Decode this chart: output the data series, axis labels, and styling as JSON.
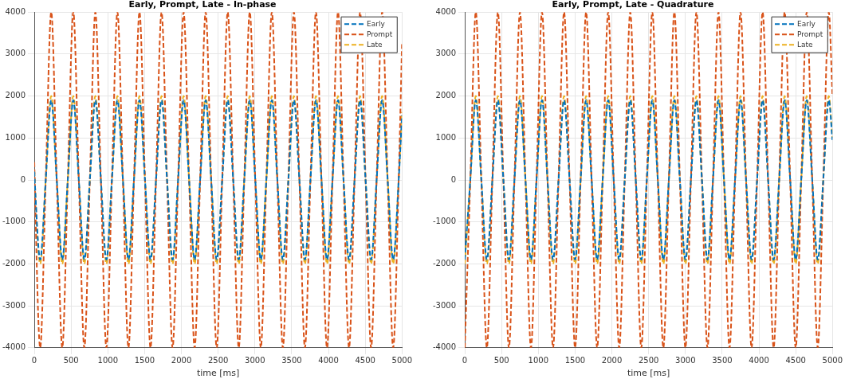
{
  "chart_data": [
    {
      "type": "line",
      "title": "Early, Prompt, Late - In-phase",
      "xlabel": "time [ms]",
      "x": [
        0,
        5,
        80,
        155,
        230,
        305,
        380,
        455,
        530,
        605,
        680,
        755,
        830,
        905,
        980,
        1055,
        1130,
        1205,
        1280,
        1355,
        1430,
        1505,
        1580,
        1655,
        1730,
        1805,
        1880,
        1955,
        2030,
        2105,
        2180,
        2255,
        2330,
        2405,
        2480,
        2555,
        2630,
        2705,
        2780,
        2855,
        2930,
        3005,
        3080,
        3155,
        3230,
        3305,
        3380,
        3455,
        3530,
        3605,
        3680,
        3755,
        3830,
        3905,
        3980,
        4055,
        4130,
        4205,
        4280,
        4355,
        4430,
        4505,
        4580,
        4655,
        4730,
        4805,
        4880,
        4955,
        5000
      ],
      "series": [
        {
          "name": "Early",
          "color": "#0072bd",
          "values": [
            200,
            0,
            -1900,
            0,
            1900,
            0,
            -1900,
            0,
            1900,
            0,
            -1900,
            0,
            1900,
            0,
            -1900,
            0,
            1900,
            0,
            -1900,
            0,
            1900,
            0,
            -1900,
            0,
            1900,
            0,
            -1900,
            0,
            1900,
            0,
            -1900,
            0,
            1900,
            0,
            -1900,
            0,
            1900,
            0,
            -1900,
            0,
            1900,
            0,
            -1900,
            0,
            1900,
            0,
            -1900,
            0,
            1900,
            0,
            -1900,
            0,
            1900,
            0,
            -1900,
            0,
            1900,
            0,
            -1900,
            0,
            1900,
            0,
            -1900,
            0,
            1900,
            0,
            -1900,
            0,
            1540
          ]
        },
        {
          "name": "Prompt",
          "color": "#d95319",
          "values": [
            420,
            0,
            -4000,
            0,
            4000,
            0,
            -4000,
            0,
            4000,
            0,
            -4000,
            0,
            4000,
            0,
            -4000,
            0,
            4000,
            0,
            -4000,
            0,
            4000,
            0,
            -4000,
            0,
            4000,
            0,
            -4000,
            0,
            4000,
            0,
            -4000,
            0,
            4000,
            0,
            -4000,
            0,
            4000,
            0,
            -4000,
            0,
            4000,
            0,
            -4000,
            0,
            4000,
            0,
            -4000,
            0,
            4000,
            0,
            -4000,
            0,
            4000,
            0,
            -4000,
            0,
            4000,
            0,
            -4000,
            0,
            4000,
            0,
            -4000,
            0,
            4000,
            0,
            -4000,
            0,
            3240
          ]
        },
        {
          "name": "Late",
          "color": "#edb120",
          "values": [
            210,
            0,
            -2000,
            0,
            2000,
            0,
            -2000,
            0,
            2000,
            0,
            -2000,
            0,
            2000,
            0,
            -2000,
            0,
            2000,
            0,
            -2000,
            0,
            2000,
            0,
            -2000,
            0,
            2000,
            0,
            -2000,
            0,
            2000,
            0,
            -2000,
            0,
            2000,
            0,
            -2000,
            0,
            2000,
            0,
            -2000,
            0,
            2000,
            0,
            -2000,
            0,
            2000,
            0,
            -2000,
            0,
            2000,
            0,
            -2000,
            0,
            2000,
            0,
            -2000,
            0,
            2000,
            0,
            -2000,
            0,
            2000,
            0,
            -2000,
            0,
            2000,
            0,
            -2000,
            0,
            1620
          ]
        }
      ],
      "xlim": [
        0,
        5000
      ],
      "xticks": [
        0,
        500,
        1000,
        1500,
        2000,
        2500,
        3000,
        3500,
        4000,
        4500,
        5000
      ],
      "ylim": [
        -4000,
        4000
      ],
      "yticks": [
        -4000,
        -3000,
        -2000,
        -1000,
        0,
        1000,
        2000,
        3000,
        4000
      ],
      "grid": true,
      "legend": "top right",
      "line_style": "dashed"
    },
    {
      "type": "line",
      "title": "Early, Prompt, Late - Quadrature",
      "xlabel": "time [ms]",
      "x": [
        0,
        75,
        150,
        225,
        300,
        375,
        450,
        525,
        600,
        675,
        750,
        825,
        900,
        975,
        1050,
        1125,
        1200,
        1275,
        1350,
        1425,
        1500,
        1575,
        1650,
        1725,
        1800,
        1875,
        1950,
        2025,
        2100,
        2175,
        2250,
        2325,
        2400,
        2475,
        2550,
        2625,
        2700,
        2775,
        2850,
        2925,
        3000,
        3075,
        3150,
        3225,
        3300,
        3375,
        3450,
        3525,
        3600,
        3675,
        3750,
        3825,
        3900,
        3975,
        4050,
        4125,
        4200,
        4275,
        4350,
        4425,
        4500,
        4575,
        4650,
        4725,
        4800,
        4875,
        4950,
        5000
      ],
      "series": [
        {
          "name": "Early",
          "color": "#0072bd",
          "values": [
            -1900,
            0,
            1900,
            0,
            -1900,
            0,
            1900,
            0,
            -1900,
            0,
            1900,
            0,
            -1900,
            0,
            1900,
            0,
            -1900,
            0,
            1900,
            0,
            -1900,
            0,
            1900,
            0,
            -1900,
            0,
            1900,
            0,
            -1900,
            0,
            1900,
            0,
            -1900,
            0,
            1900,
            0,
            -1900,
            0,
            1900,
            0,
            -1900,
            0,
            1900,
            0,
            -1900,
            0,
            1900,
            0,
            -1900,
            0,
            1900,
            0,
            -1900,
            0,
            1900,
            0,
            -1900,
            0,
            1900,
            0,
            -1900,
            0,
            1900,
            0,
            -1900,
            0,
            1900,
            950
          ]
        },
        {
          "name": "Prompt",
          "color": "#d95319",
          "values": [
            -4000,
            0,
            4000,
            0,
            -4000,
            0,
            4000,
            0,
            -4000,
            0,
            4000,
            0,
            -4000,
            0,
            4000,
            0,
            -4000,
            0,
            4000,
            0,
            -4000,
            0,
            4000,
            0,
            -4000,
            0,
            4000,
            0,
            -4000,
            0,
            4000,
            0,
            -4000,
            0,
            4000,
            0,
            -4000,
            0,
            4000,
            0,
            -4000,
            0,
            4000,
            0,
            -4000,
            0,
            4000,
            0,
            -4000,
            0,
            4000,
            0,
            -4000,
            0,
            4000,
            0,
            -4000,
            0,
            4000,
            0,
            -4000,
            0,
            4000,
            0,
            -4000,
            0,
            4000,
            2000
          ]
        },
        {
          "name": "Late",
          "color": "#edb120",
          "values": [
            -2000,
            0,
            2000,
            0,
            -2000,
            0,
            2000,
            0,
            -2000,
            0,
            2000,
            0,
            -2000,
            0,
            2000,
            0,
            -2000,
            0,
            2000,
            0,
            -2000,
            0,
            2000,
            0,
            -2000,
            0,
            2000,
            0,
            -2000,
            0,
            2000,
            0,
            -2000,
            0,
            2000,
            0,
            -2000,
            0,
            2000,
            0,
            -2000,
            0,
            2000,
            0,
            -2000,
            0,
            2000,
            0,
            -2000,
            0,
            2000,
            0,
            -2000,
            0,
            2000,
            0,
            -2000,
            0,
            2000,
            0,
            -2000,
            0,
            2000,
            0,
            -2000,
            0,
            2000,
            1000
          ]
        }
      ],
      "xlim": [
        0,
        5000
      ],
      "xticks": [
        0,
        500,
        1000,
        1500,
        2000,
        2500,
        3000,
        3500,
        4000,
        4500,
        5000
      ],
      "ylim": [
        -4000,
        4000
      ],
      "yticks": [
        -4000,
        -3000,
        -2000,
        -1000,
        0,
        1000,
        2000,
        3000,
        4000
      ],
      "grid": true,
      "legend": "top right",
      "line_style": "dashed"
    }
  ]
}
